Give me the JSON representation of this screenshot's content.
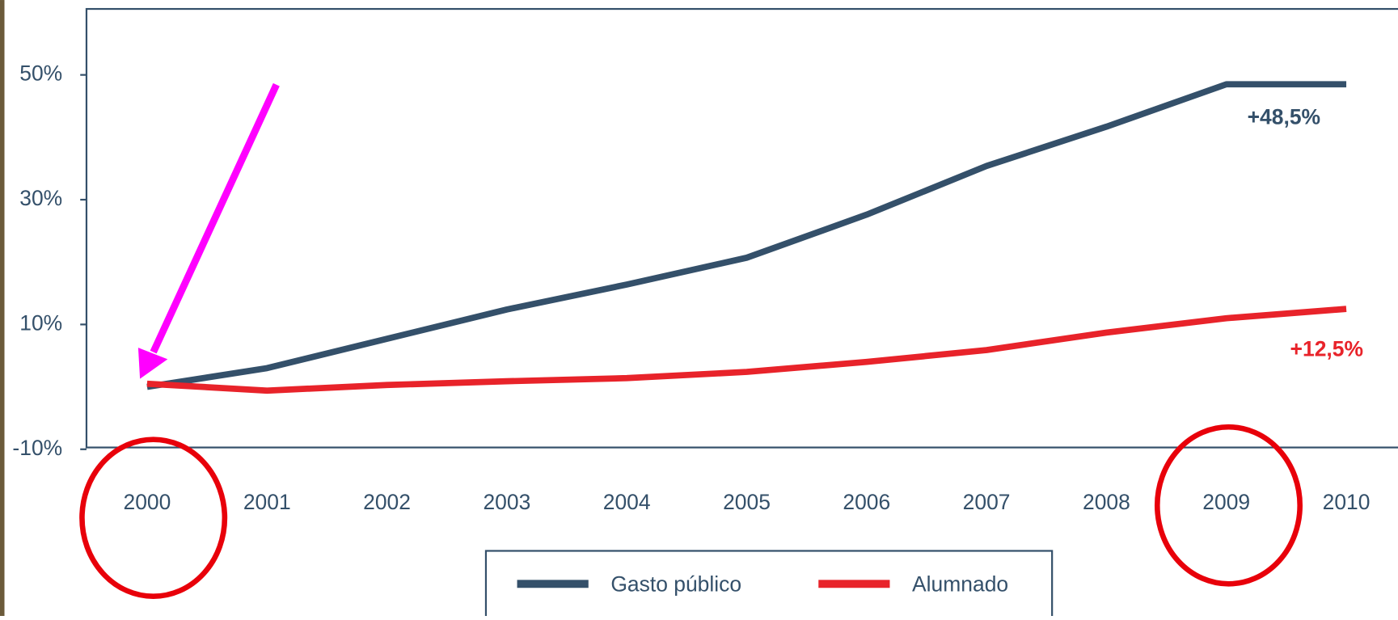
{
  "chart_data": {
    "type": "line",
    "categories": [
      "2000",
      "2001",
      "2002",
      "2003",
      "2004",
      "2005",
      "2006",
      "2007",
      "2008",
      "2009",
      "2010"
    ],
    "series": [
      {
        "name": "Gasto público",
        "color": "#34506a",
        "values": [
          0,
          3,
          7.7,
          12.4,
          16.4,
          20.7,
          27.6,
          35.4,
          41.7,
          48.5,
          48.5
        ]
      },
      {
        "name": "Alumnado",
        "color": "#e8232a",
        "values": [
          0.5,
          -0.6,
          0.3,
          0.9,
          1.4,
          2.4,
          4,
          5.9,
          8.7,
          11,
          12.5
        ]
      }
    ],
    "annotations": [
      "+48,5%",
      "+12,5%"
    ],
    "ylim": [
      -10,
      60
    ],
    "yticks": [
      {
        "value": -10,
        "label": "-10%"
      },
      {
        "value": 10,
        "label": "10%"
      },
      {
        "value": 30,
        "label": "30%"
      },
      {
        "value": 50,
        "label": "50%"
      }
    ],
    "legend": "bottom"
  }
}
